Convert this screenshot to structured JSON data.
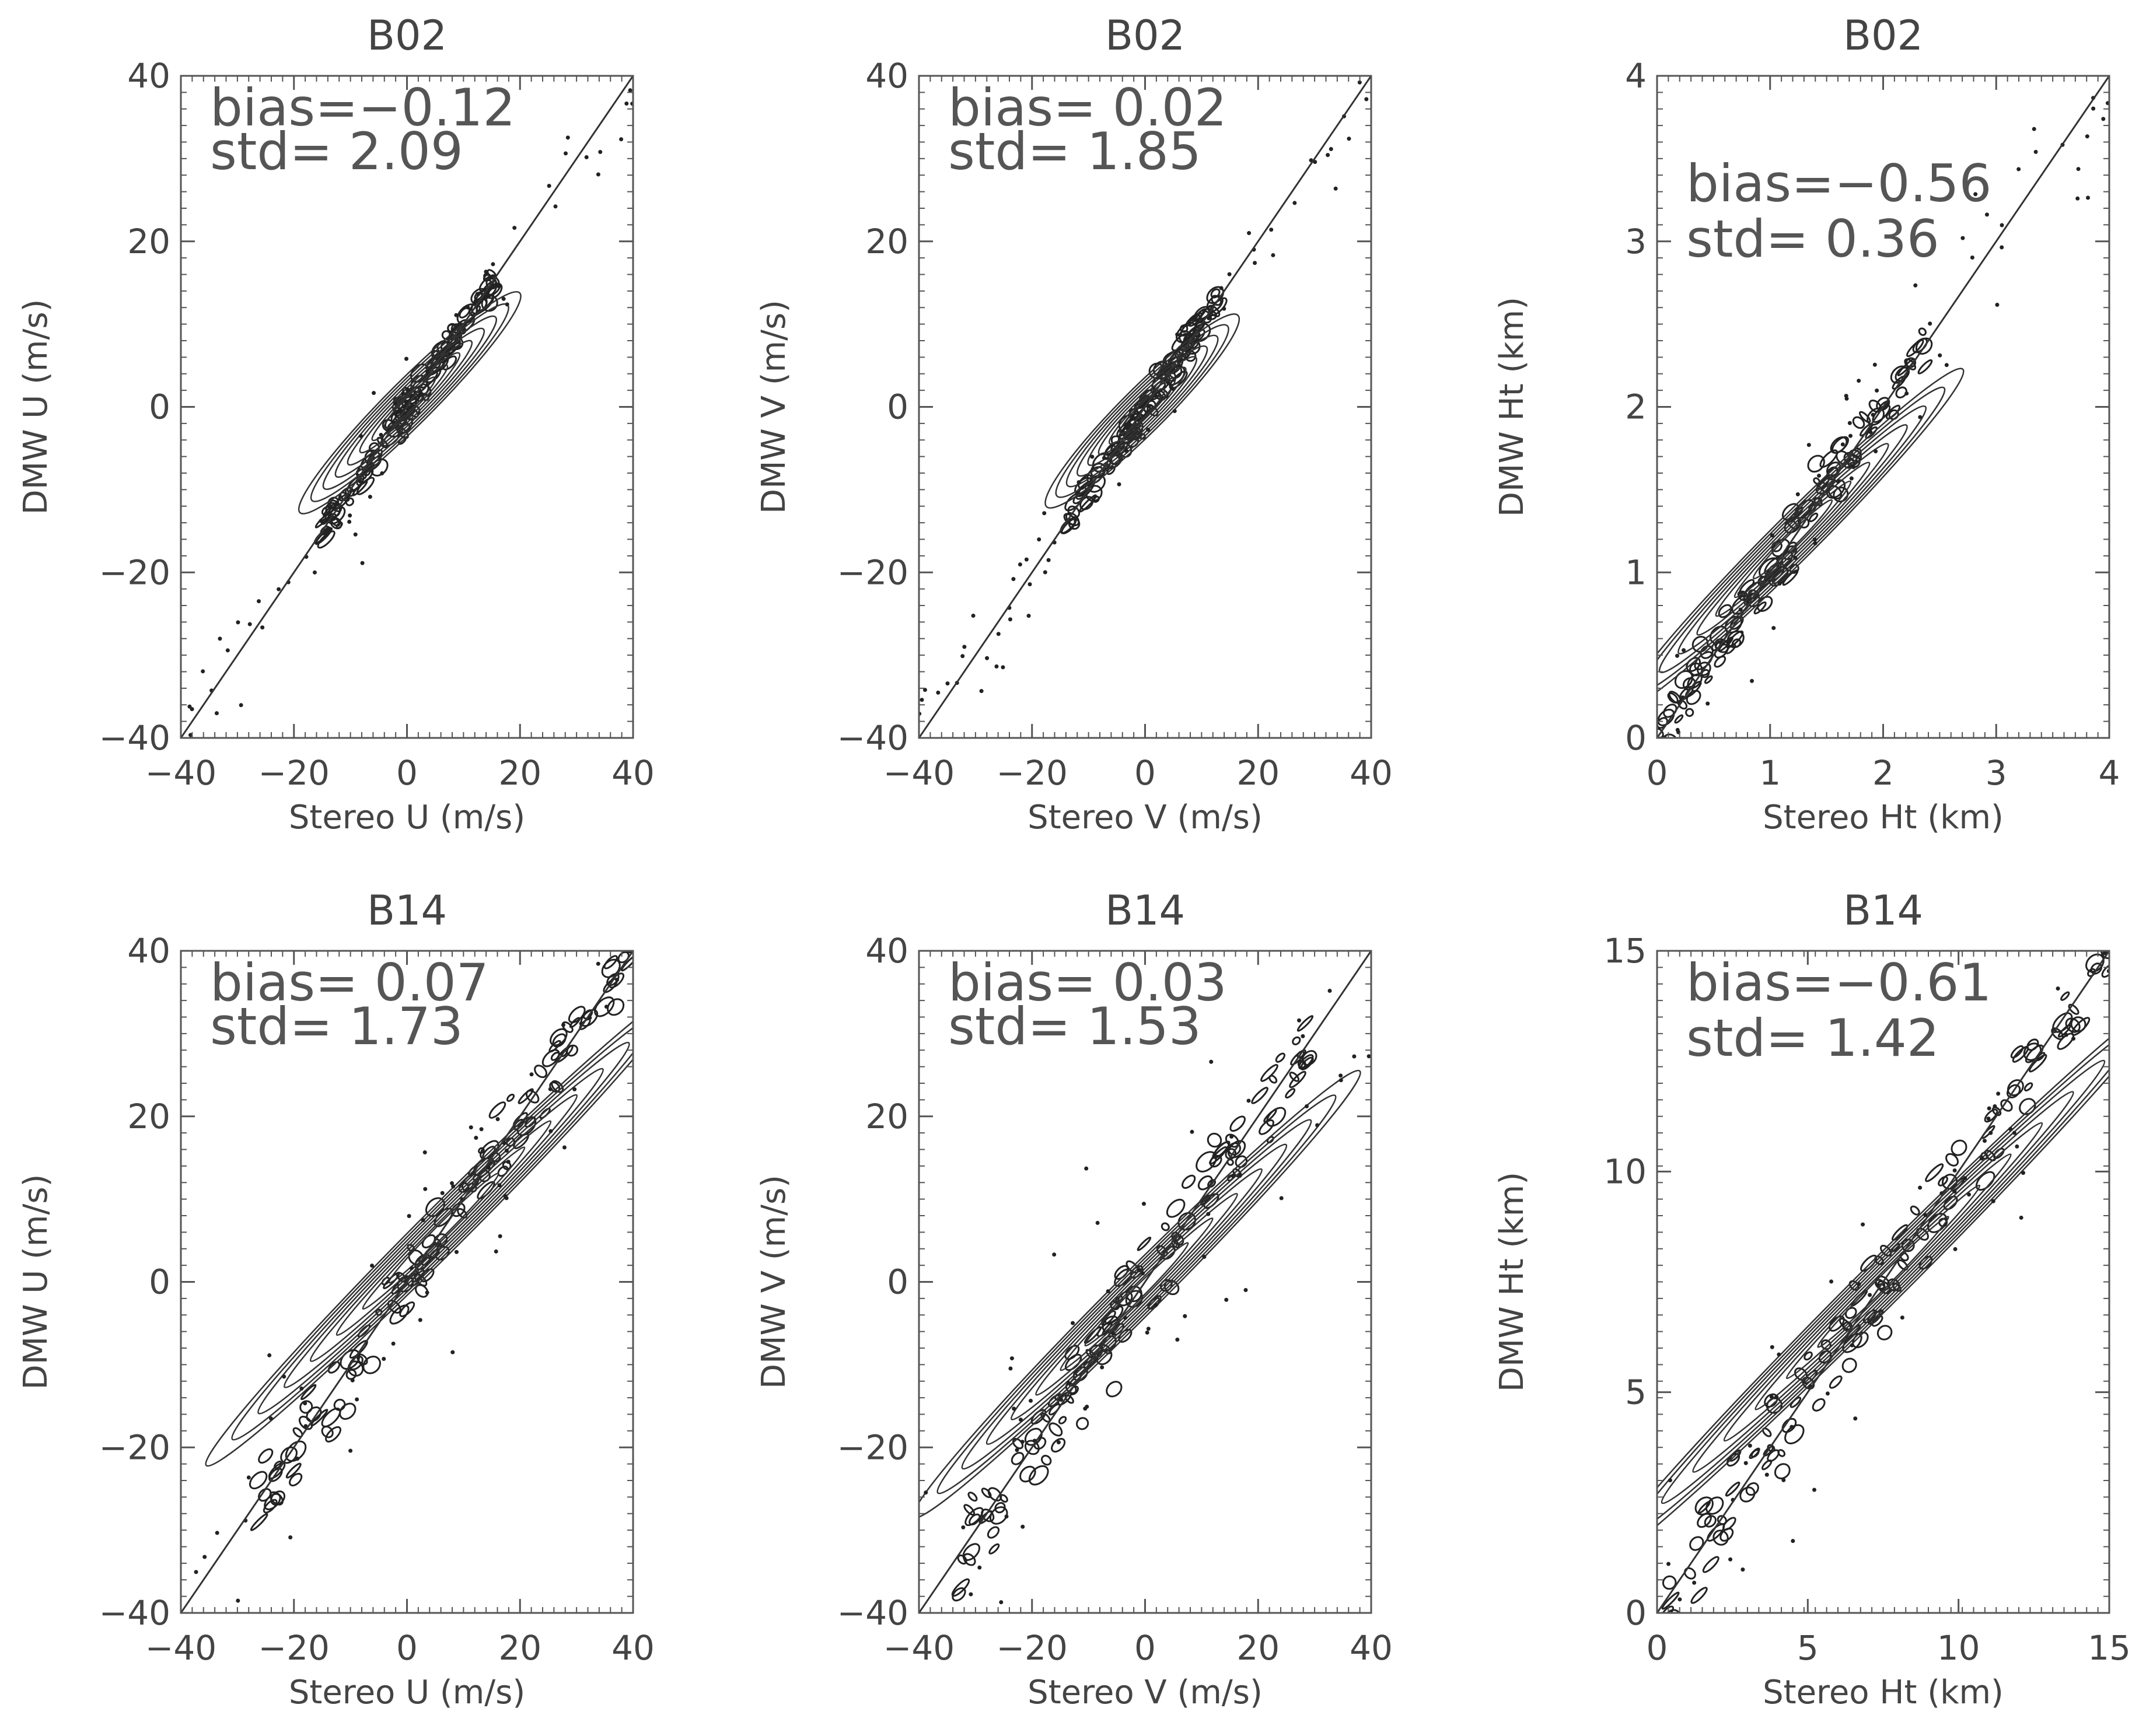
{
  "chart_data": [
    {
      "type": "contour",
      "title": "B02",
      "xlabel": "Stereo U (m/s)",
      "ylabel": "DMW U (m/s)",
      "xlim": [
        -40,
        40
      ],
      "ylim": [
        -40,
        40
      ],
      "xticks": [
        "−40",
        "−20",
        "0",
        "20",
        "40"
      ],
      "yticks": [
        "−40",
        "−20",
        "0",
        "20",
        "40"
      ],
      "xtick_values": [
        -40,
        -20,
        0,
        20,
        40
      ],
      "ytick_values": [
        -40,
        -20,
        0,
        20,
        40
      ],
      "annotation": [
        "bias=−0.12",
        "std= 2.09"
      ],
      "reference_line": "one-to-one",
      "density_core": {
        "x_range": [
          -15,
          16
        ],
        "y_range": [
          -15,
          16
        ]
      }
    },
    {
      "type": "contour",
      "title": "B02",
      "xlabel": "Stereo V (m/s)",
      "ylabel": "DMW V (m/s)",
      "xlim": [
        -40,
        40
      ],
      "ylim": [
        -40,
        40
      ],
      "xticks": [
        "−40",
        "−20",
        "0",
        "20",
        "40"
      ],
      "yticks": [
        "−40",
        "−20",
        "0",
        "20",
        "40"
      ],
      "xtick_values": [
        -40,
        -20,
        0,
        20,
        40
      ],
      "ytick_values": [
        -40,
        -20,
        0,
        20,
        40
      ],
      "annotation": [
        "bias= 0.02",
        "std= 1.85"
      ],
      "reference_line": "one-to-one",
      "density_core": {
        "x_range": [
          -14,
          13
        ],
        "y_range": [
          -14,
          13
        ]
      }
    },
    {
      "type": "contour",
      "title": "B02",
      "xlabel": "Stereo Ht (km)",
      "ylabel": "DMW Ht (km)",
      "xlim": [
        0,
        4
      ],
      "ylim": [
        0,
        4
      ],
      "xticks": [
        "0",
        "1",
        "2",
        "3",
        "4"
      ],
      "yticks": [
        "0",
        "1",
        "2",
        "3",
        "4"
      ],
      "xtick_values": [
        0,
        1,
        2,
        3,
        4
      ],
      "ytick_values": [
        0,
        1,
        2,
        3,
        4
      ],
      "annotation": [
        "bias=−0.56",
        "std= 0.36"
      ],
      "reference_line": "one-to-one",
      "density_core": {
        "x_range": [
          0,
          2.4
        ],
        "y_range": [
          0,
          2.5
        ]
      }
    },
    {
      "type": "contour",
      "title": "B14",
      "xlabel": "Stereo U (m/s)",
      "ylabel": "DMW U (m/s)",
      "xlim": [
        -40,
        40
      ],
      "ylim": [
        -40,
        40
      ],
      "xticks": [
        "−40",
        "−20",
        "0",
        "20",
        "40"
      ],
      "yticks": [
        "−40",
        "−20",
        "0",
        "20",
        "40"
      ],
      "xtick_values": [
        -40,
        -20,
        0,
        20,
        40
      ],
      "ytick_values": [
        -40,
        -20,
        0,
        20,
        40
      ],
      "annotation": [
        "bias= 0.07",
        "std= 1.73"
      ],
      "reference_line": "one-to-one",
      "density_core": {
        "x_range": [
          -27,
          40
        ],
        "y_range": [
          -27,
          40
        ]
      }
    },
    {
      "type": "contour",
      "title": "B14",
      "xlabel": "Stereo V (m/s)",
      "ylabel": "DMW V (m/s)",
      "xlim": [
        -40,
        40
      ],
      "ylim": [
        -40,
        40
      ],
      "xticks": [
        "−40",
        "−20",
        "0",
        "20",
        "40"
      ],
      "yticks": [
        "−40",
        "−20",
        "0",
        "20",
        "40"
      ],
      "xtick_values": [
        -40,
        -20,
        0,
        20,
        40
      ],
      "ytick_values": [
        -40,
        -20,
        0,
        20,
        40
      ],
      "annotation": [
        "bias= 0.03",
        "std= 1.53"
      ],
      "reference_line": "one-to-one",
      "density_core": {
        "x_range": [
          -33,
          30
        ],
        "y_range": [
          -33,
          35
        ]
      }
    },
    {
      "type": "contour",
      "title": "B14",
      "xlabel": "Stereo Ht (km)",
      "ylabel": "DMW Ht (km)",
      "xlim": [
        0,
        15
      ],
      "ylim": [
        0,
        15
      ],
      "xticks": [
        "0",
        "5",
        "10",
        "15"
      ],
      "yticks": [
        "0",
        "5",
        "10",
        "15"
      ],
      "xtick_values": [
        0,
        5,
        10,
        15
      ],
      "ytick_values": [
        0,
        5,
        10,
        15
      ],
      "annotation": [
        "bias=−0.61",
        "std= 1.42"
      ],
      "reference_line": "one-to-one",
      "density_core": {
        "x_range": [
          0,
          15
        ],
        "y_range": [
          0,
          14
        ]
      }
    }
  ]
}
